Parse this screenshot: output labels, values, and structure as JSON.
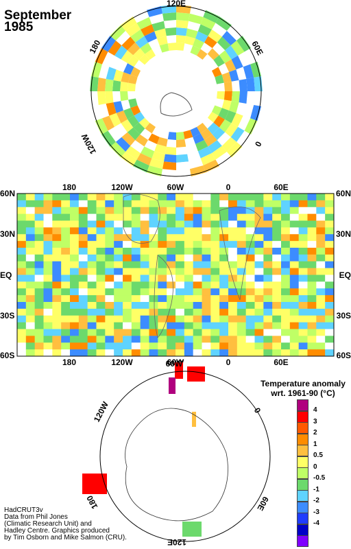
{
  "header": {
    "month": "September",
    "year": "1985"
  },
  "north_polar": {
    "labels": {
      "top": "120E",
      "left": "180",
      "right": "60E",
      "lower_left": "120W",
      "lower_right": "0"
    }
  },
  "world_map": {
    "lat_labels": [
      "60N",
      "30N",
      "EQ",
      "30S",
      "60S"
    ],
    "lon_labels": [
      "180",
      "120W",
      "60W",
      "0",
      "60E"
    ]
  },
  "south_polar": {
    "labels": {
      "top": "60W",
      "upper_left": "120W",
      "upper_right": "0",
      "lower_left": "180",
      "lower_right": "60E",
      "bottom": "120E"
    }
  },
  "legend": {
    "title_line1": "Temperature anomaly",
    "title_line2": "wrt. 1961-90  (°C)",
    "entries": [
      {
        "label": "4",
        "color": "#b0007e"
      },
      {
        "label": "3",
        "color": "#ff0000"
      },
      {
        "label": "2",
        "color": "#ff5a00"
      },
      {
        "label": "1",
        "color": "#ff8c00"
      },
      {
        "label": "0.5",
        "color": "#ffbf3f"
      },
      {
        "label": "0",
        "color": "#ffff66"
      },
      {
        "label": "-0.5",
        "color": "#bfff66"
      },
      {
        "label": "-1",
        "color": "#6cd96c"
      },
      {
        "label": "-2",
        "color": "#5fd3ff"
      },
      {
        "label": "-3",
        "color": "#3c8cff"
      },
      {
        "label": "-4",
        "color": "#1f3cff"
      },
      {
        "label": "",
        "color": "#0000c8"
      },
      {
        "label": "",
        "color": "#7f00ff"
      }
    ]
  },
  "credits": [
    "HadCRUT3v",
    "Data from Phil Jones",
    "(Climatic Research Unit) and",
    "Hadley Centre.  Graphics produced",
    "by Tim Osborn and Mike Salmon (CRU)."
  ]
}
